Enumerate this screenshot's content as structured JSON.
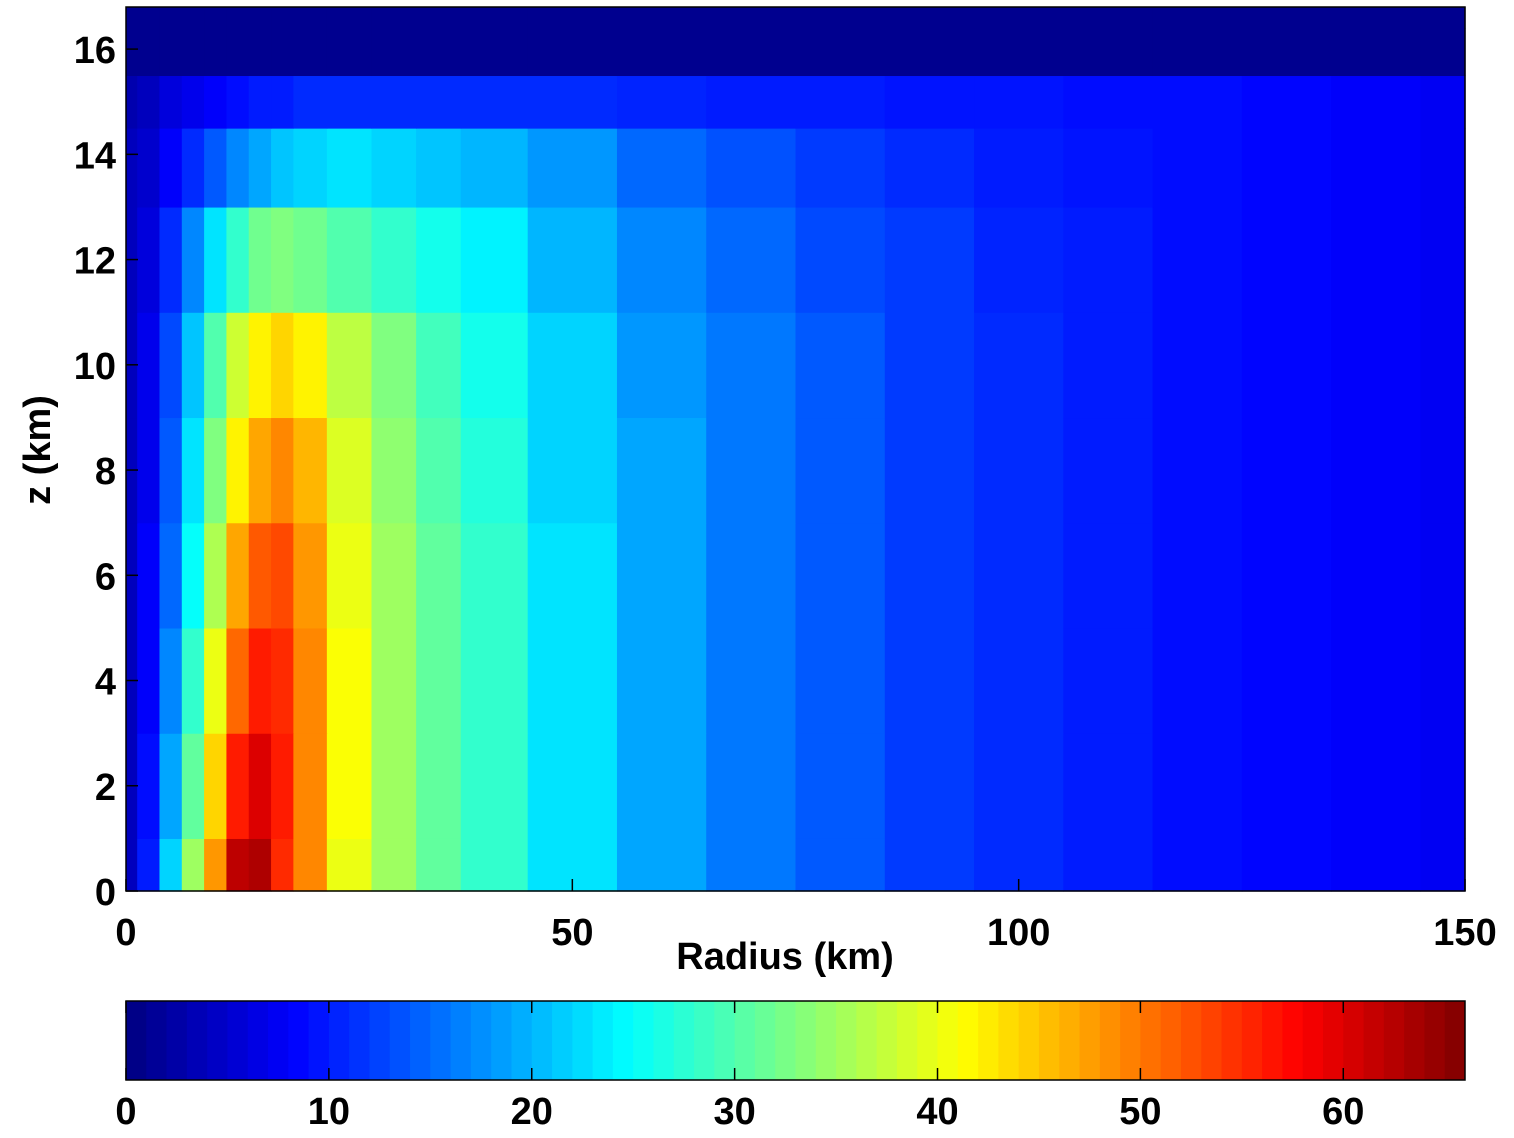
{
  "chart_data": {
    "type": "contour",
    "xlabel": "Radius (km)",
    "ylabel": "z (km)",
    "colormap": "jet",
    "x": [
      0,
      2.5,
      5,
      7.5,
      10,
      12.5,
      15,
      17.5,
      20,
      25,
      30,
      35,
      40,
      50,
      60,
      70,
      80,
      90,
      100,
      110,
      120,
      130,
      140,
      150
    ],
    "y": [
      0,
      2,
      4,
      6,
      8,
      10,
      12,
      14,
      15,
      16,
      16.8
    ],
    "z": [
      [
        4,
        10,
        22,
        35,
        48,
        62,
        63,
        55,
        49,
        40,
        35,
        31,
        28,
        23,
        19,
        16,
        14,
        12,
        11,
        10,
        9,
        8.5,
        8,
        7.5
      ],
      [
        4,
        9,
        19,
        31,
        44,
        56,
        60,
        56,
        49,
        41,
        35,
        31,
        28,
        23,
        19,
        16,
        14,
        12,
        11,
        10,
        9,
        8.5,
        8,
        7.5
      ],
      [
        4,
        8,
        17,
        28,
        40,
        51,
        56,
        55,
        49,
        41,
        35,
        31,
        28,
        23,
        19,
        16,
        14,
        12,
        11,
        10,
        9,
        8.5,
        8,
        7.5
      ],
      [
        4,
        8,
        15,
        25,
        36,
        47,
        52,
        53,
        48,
        40,
        35,
        31,
        28,
        23,
        19,
        16,
        14,
        12,
        11,
        10,
        9,
        8.5,
        8,
        7.5
      ],
      [
        4,
        7,
        14,
        23,
        33,
        42,
        47,
        49,
        46,
        39,
        34,
        30,
        27,
        22,
        19,
        16,
        14,
        12,
        11,
        10,
        9,
        8.5,
        8,
        7.5
      ],
      [
        4,
        7,
        13,
        21,
        30,
        38,
        42,
        44,
        42,
        37,
        33,
        29,
        26,
        22,
        18,
        16,
        14,
        12,
        11,
        10,
        9,
        8.5,
        8,
        7.5
      ],
      [
        4,
        6,
        11,
        17,
        23,
        28,
        32,
        33,
        32,
        30,
        28,
        26,
        24,
        20,
        17,
        15,
        13,
        12,
        10.5,
        10,
        9,
        8.5,
        8,
        7.5
      ],
      [
        4,
        5,
        8,
        11,
        14,
        17,
        19,
        21,
        22,
        23,
        22,
        21,
        20,
        18,
        15,
        13.5,
        12,
        11,
        10,
        9.5,
        9,
        8.5,
        8,
        7.5
      ],
      [
        3,
        4,
        6,
        7,
        8,
        9,
        10,
        10,
        11,
        11,
        11,
        11,
        11,
        11,
        10.5,
        10,
        10,
        9.5,
        9.5,
        9,
        9,
        8.5,
        8,
        7.5
      ],
      [
        1,
        1,
        1,
        1,
        1,
        1,
        1,
        1,
        1,
        1,
        1,
        1,
        1,
        1,
        1,
        1,
        1,
        1,
        1,
        1,
        1,
        1,
        1,
        1
      ],
      [
        1,
        1,
        1,
        1,
        1,
        1,
        1,
        1,
        1,
        1,
        1,
        1,
        1,
        1,
        1,
        1,
        1,
        1,
        1,
        1,
        1,
        1,
        1,
        1
      ]
    ],
    "xlim": [
      0,
      150
    ],
    "xticks": [
      0,
      50,
      100,
      150
    ],
    "ylim": [
      0,
      16.8
    ],
    "yticks": [
      0,
      2,
      4,
      6,
      8,
      10,
      12,
      14,
      16
    ],
    "clim": [
      0,
      66
    ],
    "cticks": [
      0,
      10,
      20,
      30,
      40,
      50,
      60
    ]
  }
}
